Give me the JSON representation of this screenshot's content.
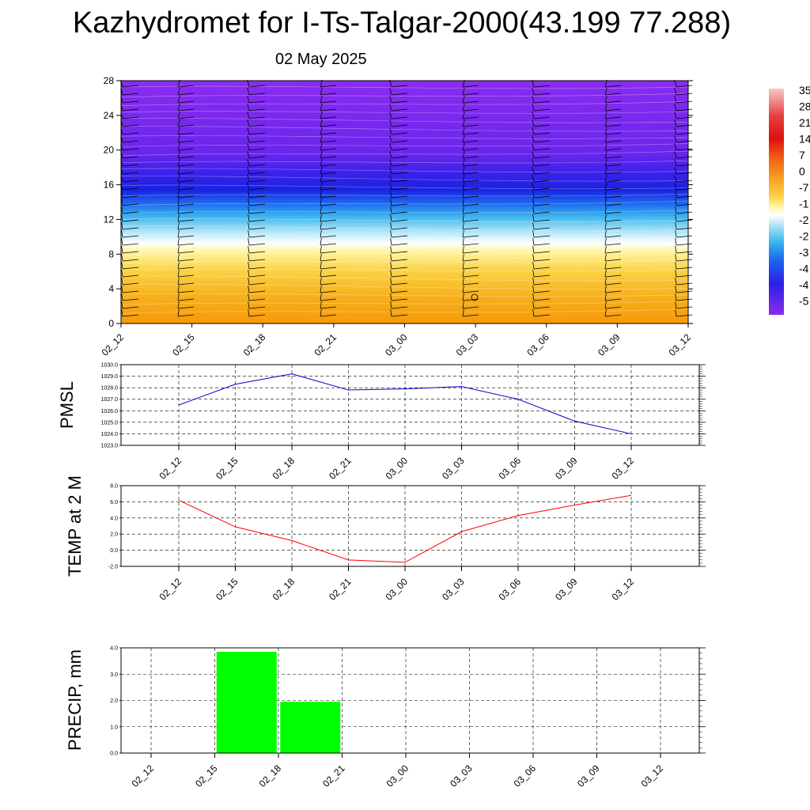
{
  "header": {
    "title": "Kazhydromet for I-Ts-Talgar-2000(43.199 77.288)",
    "date": "02 May 2025"
  },
  "colors": {
    "pmsl_line": "#0000cc",
    "temp_line": "#ff0000",
    "precip_bar": "#00ff00",
    "wind_barb": "#000000",
    "grid": "#000000"
  },
  "chart_data": [
    {
      "name": "cross-section",
      "type": "heatmap",
      "x_categories": [
        "02_12",
        "02_15",
        "02_18",
        "02_21",
        "03_00",
        "03_03",
        "03_06",
        "03_09",
        "03_12"
      ],
      "y_ticks": [
        "0",
        "4",
        "8",
        "12",
        "16",
        "20",
        "24",
        "28"
      ],
      "ylim": [
        0,
        28
      ],
      "colorbar_labels": [
        "35",
        "28",
        "21",
        "14",
        "7",
        "0",
        "-7",
        "-1",
        "-2",
        "-2",
        "-3",
        "-4",
        "-4",
        "-5"
      ],
      "overlay": "wind barbs"
    },
    {
      "name": "pmsl",
      "type": "line",
      "ylabel": "PMSL",
      "categories": [
        "02_12",
        "02_15",
        "02_18",
        "02_21",
        "03_00",
        "03_03",
        "03_06",
        "03_09",
        "03_12"
      ],
      "values": [
        1026.5,
        1028.3,
        1029.2,
        1027.8,
        1027.9,
        1028.1,
        1027.0,
        1025.1,
        1024.0
      ],
      "y_ticks": [
        "1030.0",
        "1029.0",
        "1028.0",
        "1027.0",
        "1026.0",
        "1025.0",
        "1024.0",
        "1023.0"
      ],
      "ylim": [
        1023,
        1030
      ],
      "grid": true
    },
    {
      "name": "temp",
      "type": "line",
      "ylabel": "TEMP at 2 M",
      "categories": [
        "02_12",
        "02_15",
        "02_18",
        "02_21",
        "03_00",
        "03_03",
        "03_06",
        "03_09",
        "03_12"
      ],
      "values": [
        6.2,
        2.9,
        1.2,
        -1.2,
        -1.5,
        2.3,
        4.3,
        5.6,
        6.8
      ],
      "y_ticks": [
        "8.0",
        "6.0",
        "4.0",
        "2.0",
        "0.0",
        "-2.0"
      ],
      "ylim": [
        -2,
        8
      ],
      "grid": true
    },
    {
      "name": "precip",
      "type": "bar",
      "ylabel": "PRECIP, mm",
      "categories": [
        "02_12",
        "02_15",
        "02_18",
        "02_21",
        "03_00",
        "03_03",
        "03_06",
        "03_09",
        "03_12"
      ],
      "values": [
        0,
        3.85,
        1.95,
        0,
        0,
        0,
        0,
        0,
        0
      ],
      "y_ticks": [
        "4.0",
        "3.0",
        "2.0",
        "1.0",
        "0.0"
      ],
      "ylim": [
        0,
        4
      ],
      "grid": true
    }
  ]
}
